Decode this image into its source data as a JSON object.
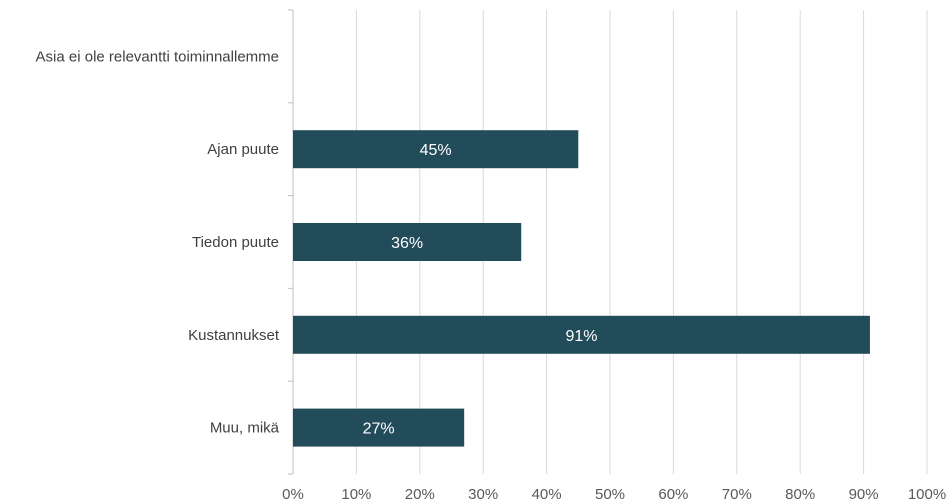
{
  "chart_data": {
    "type": "bar",
    "orientation": "horizontal",
    "categories": [
      "Asia ei ole relevantti toiminnallemme",
      "Ajan puute",
      "Tiedon puute",
      "Kustannukset",
      "Muu, mikä"
    ],
    "values": [
      0,
      45,
      36,
      91,
      27
    ],
    "data_labels": [
      "",
      "45%",
      "36%",
      "91%",
      "27%"
    ],
    "x_ticks": [
      "0%",
      "10%",
      "20%",
      "30%",
      "40%",
      "50%",
      "60%",
      "70%",
      "80%",
      "90%",
      "100%"
    ],
    "xlim": [
      0,
      100
    ],
    "grid": true,
    "legend": "none",
    "colors": {
      "bar": "#234c5a",
      "grid": "#d9d9d9",
      "text": "#404040"
    }
  }
}
